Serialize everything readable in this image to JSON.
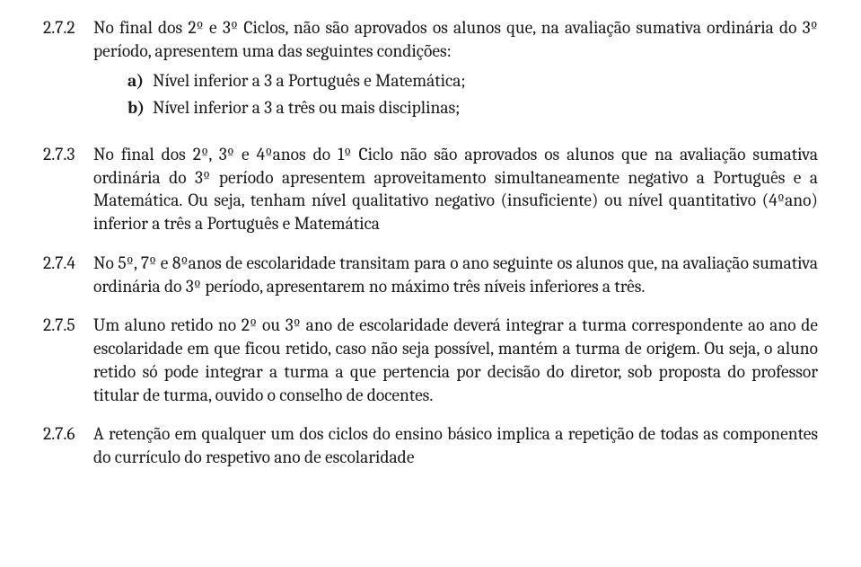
{
  "items": [
    {
      "num": "2.7.2",
      "text_pre": "No final dos 2º e 3º Ciclos, não são aprovados os alunos que, na avaliação sumativa ordinária do 3º período, apresentem uma das seguintes condições:",
      "subs": [
        {
          "label": "a)",
          "text": "Nível inferior a 3 a Português e Matemática;"
        },
        {
          "label": "b)",
          "text": "Nível inferior a 3 a três ou mais disciplinas;"
        }
      ]
    },
    {
      "num": "2.7.3",
      "text": "No final dos 2º, 3º e 4ºanos do 1º Ciclo não são aprovados os alunos que na avaliação sumativa ordinária do 3º período apresentem aproveitamento simultaneamente negativo a Português e a Matemática. Ou seja, tenham nível qualitativo negativo (insuficiente) ou nível quantitativo (4ºano) inferior a três a Português e Matemática"
    },
    {
      "num": "2.7.4",
      "text": "No 5º, 7º e 8ºanos de escolaridade transitam para o ano seguinte os alunos que, na avaliação sumativa ordinária do 3º período, apresentarem no máximo três níveis inferiores a três."
    },
    {
      "num": "2.7.5",
      "text": "Um aluno retido no 2º ou 3º ano de escolaridade deverá integrar a turma correspondente ao ano de escolaridade em que ficou retido, caso não seja possível, mantém a turma de origem. Ou seja, o aluno retido só pode integrar a turma a que pertencia por decisão do diretor, sob proposta do professor titular de turma, ouvido o conselho de docentes."
    },
    {
      "num": "2.7.6",
      "text": "A retenção em qualquer um dos ciclos do ensino básico implica a repetição de todas as componentes do currículo do respetivo ano de escolaridade"
    }
  ]
}
